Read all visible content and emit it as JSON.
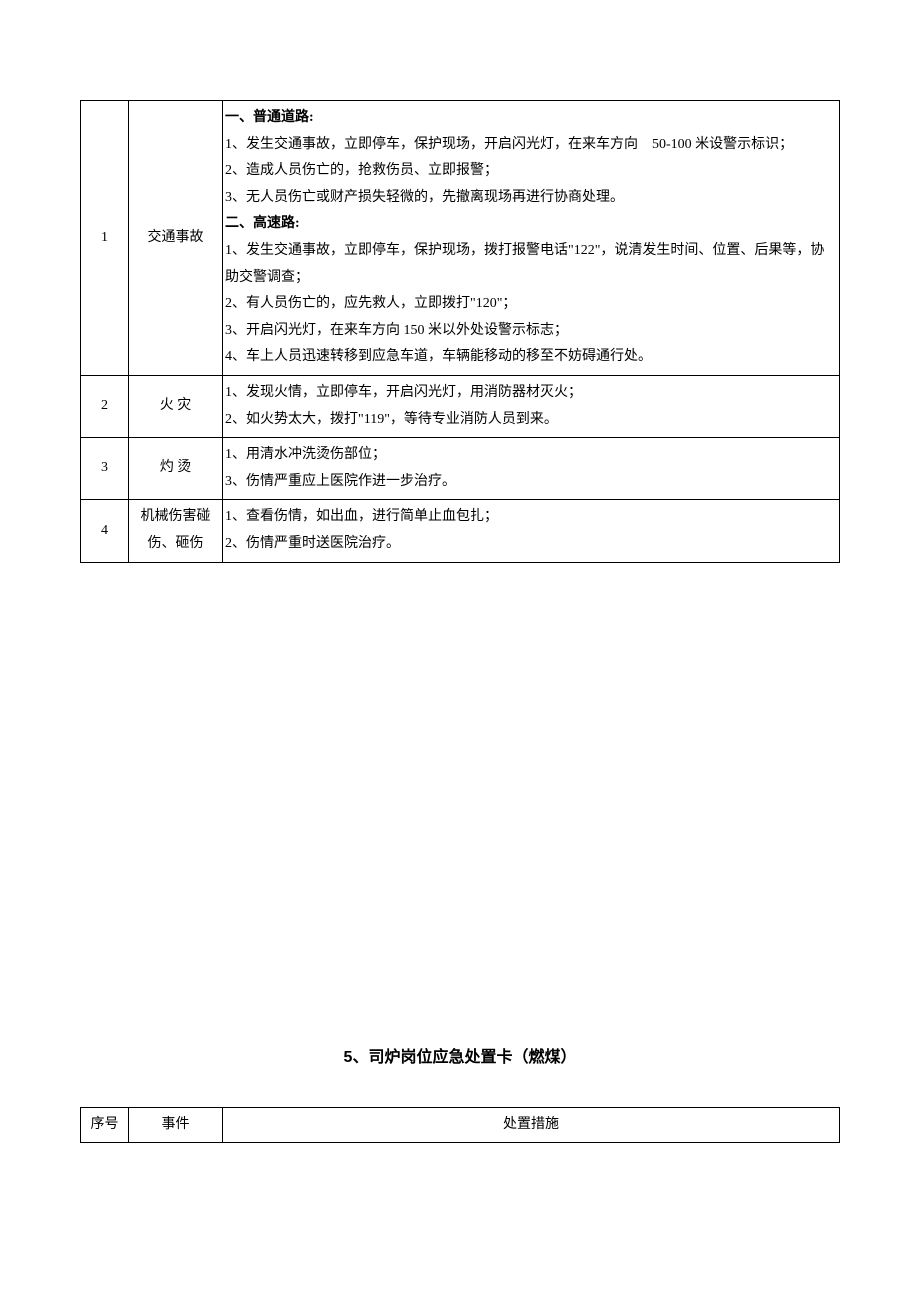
{
  "table1": {
    "rows": [
      {
        "num": "1",
        "event": "交通事故",
        "measure_html": [
          {
            "text": "一、普通道路:",
            "bold": true
          },
          {
            "text": "1、发生交通事故，立即停车，保护现场，开启闪光灯，在来车方向　50-100 米设警示标识；"
          },
          {
            "text": "2、造成人员伤亡的，抢救伤员、立即报警；"
          },
          {
            "text": "3、无人员伤亡或财产损失轻微的，先撤离现场再进行协商处理。"
          },
          {
            "text": "二、高速路:",
            "bold": true
          },
          {
            "text": "1、发生交通事故，立即停车，保护现场，拨打报警电话\"122\"，说清发生时间、位置、后果等，协助交警调查；"
          },
          {
            "text": "2、有人员伤亡的，应先救人，立即拨打\"120\"；"
          },
          {
            "text": "3、开启闪光灯，在来车方向 150 米以外处设警示标志；"
          },
          {
            "text": "4、车上人员迅速转移到应急车道，车辆能移动的移至不妨碍通行处。"
          }
        ]
      },
      {
        "num": "2",
        "event": "火 灾",
        "measure_html": [
          {
            "text": "1、发现火情，立即停车，开启闪光灯，用消防器材灭火；"
          },
          {
            "text": "2、如火势太大，拨打\"119\"，等待专业消防人员到来。"
          }
        ]
      },
      {
        "num": "3",
        "event": "灼 烫",
        "measure_html": [
          {
            "text": "1、用清水冲洗烫伤部位；"
          },
          {
            "text": "3、伤情严重应上医院作进一步治疗。"
          }
        ]
      },
      {
        "num": "4",
        "event": "机械伤害碰伤、砸伤",
        "measure_html": [
          {
            "text": "1、查看伤情，如出血，进行简单止血包扎；"
          },
          {
            "text": "2、伤情严重时送医院治疗。"
          }
        ]
      }
    ]
  },
  "section_title": "5、司炉岗位应急处置卡（燃煤）",
  "table2": {
    "headers": {
      "num": "序号",
      "event": "事件",
      "measure": "处置措施"
    }
  }
}
